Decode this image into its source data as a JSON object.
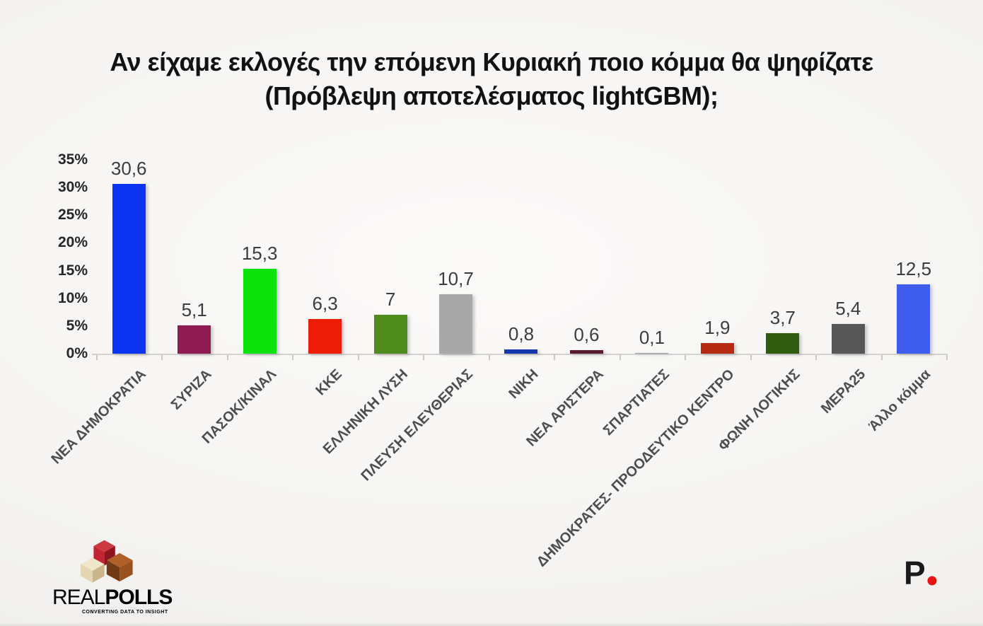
{
  "title": {
    "line1": "Αν είχαμε εκλογές την επόμενη Κυριακή ποιο κόμμα θα ψηφίζατε",
    "line2": "(Πρόβλεψη αποτελέσματος lightGBM);"
  },
  "chart_data": {
    "type": "bar",
    "title": "Αν είχαμε εκλογές την επόμενη Κυριακή ποιο κόμμα θα ψηφίζατε (Πρόβλεψη αποτελέσματος lightGBM);",
    "categories": [
      "ΝΕΑ ΔΗΜΟΚΡΑΤΙΑ",
      "ΣΥΡΙΖΑ",
      "ΠΑΣΟΚ/ΚΙΝΑΛ",
      "ΚΚΕ",
      "ΕΛΛΗΝΙΚΗ ΛΥΣΗ",
      "ΠΛΕΥΣΗ ΕΛΕΥΘΕΡΙΑΣ",
      "ΝΙΚΗ",
      "ΝΕΑ ΑΡΙΣΤΕΡΑ",
      "ΣΠΑΡΤΙΑΤΕΣ",
      "ΔΗΜΟΚΡΑΤΕΣ- ΠΡΟΟΔΕΥΤΙΚΟ ΚΕΝΤΡΟ",
      "ΦΩΝΗ ΛΟΓΙΚΗΣ",
      "ΜΕΡΑ25",
      "Άλλο κόμμα"
    ],
    "values": [
      30.6,
      5.1,
      15.3,
      6.3,
      7,
      10.7,
      0.8,
      0.6,
      0.1,
      1.9,
      3.7,
      5.4,
      12.5
    ],
    "value_labels": [
      "30,6",
      "5,1",
      "15,3",
      "6,3",
      "7",
      "10,7",
      "0,8",
      "0,6",
      "0,1",
      "1,9",
      "3,7",
      "5,4",
      "12,5"
    ],
    "bar_colors": [
      "#0c33f0",
      "#8f1c50",
      "#0ce20c",
      "#ee1d08",
      "#4f8b1d",
      "#a8a8a8",
      "#1436ae",
      "#571a31",
      "#9b9b9b",
      "#b52a10",
      "#2f5d0d",
      "#575757",
      "#3e5cee"
    ],
    "y_ticks": [
      "35%",
      "30%",
      "25%",
      "20%",
      "15%",
      "10%",
      "5%",
      "0%"
    ],
    "ylim": [
      0,
      35
    ],
    "xlabel": "",
    "ylabel": "",
    "grid": false,
    "legend": "none",
    "x_label_rotation_deg": 45
  },
  "footer": {
    "realpolls": {
      "name_light": "REAL",
      "name_bold": "POLLS",
      "tagline": "CONVERTING DATA TO INSIGHT",
      "colors": {
        "red_top": "#ce3840",
        "red_left": "#c22531",
        "red_right": "#8f141f",
        "brown_top": "#b26029",
        "brown_left": "#713a12",
        "brown_right": "#99511d",
        "cream_top": "#f0e7ca",
        "cream_left": "#e3d6b0",
        "cream_right": "#c9b78b",
        "text_light": "#9c8b78",
        "text_bold": "#5e3322",
        "tagline_color": "#c5332b"
      }
    },
    "p_logo": {
      "letter": "P",
      "letter_color": "#1a1a1a",
      "dot_color": "#e81414"
    }
  }
}
